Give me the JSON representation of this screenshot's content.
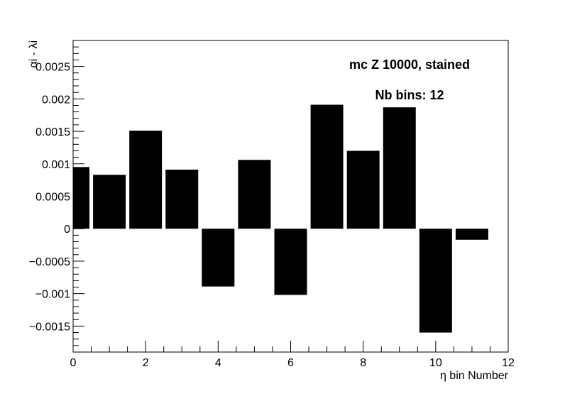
{
  "chart_data": {
    "type": "bar",
    "xlabel": "η bin Number",
    "ylabel": "αi - λi",
    "xlim": [
      0,
      12
    ],
    "ylim": [
      -0.0019,
      0.0029
    ],
    "x_ticks": [
      0,
      2,
      4,
      6,
      8,
      10,
      12
    ],
    "y_ticks": [
      -0.0015,
      -0.001,
      -0.0005,
      0,
      0.0005,
      0.001,
      0.0015,
      0.002,
      0.0025
    ],
    "y_tick_labels": [
      "−0.0015",
      "−0.001",
      "−0.0005",
      "0",
      "0.0005",
      "0.001",
      "0.0015",
      "0.002",
      "0.0025"
    ],
    "x_tick_labels": [
      "0",
      "2",
      "4",
      "6",
      "8",
      "10",
      "12"
    ],
    "bin_width": 0.9,
    "x": [
      0,
      1,
      2,
      3,
      4,
      5,
      6,
      7,
      8,
      9,
      10,
      11
    ],
    "values": [
      0.00095,
      0.00083,
      0.00151,
      0.00091,
      -0.00089,
      0.00106,
      -0.00102,
      0.00191,
      0.0012,
      0.00187,
      -0.0016,
      -0.00017
    ],
    "bar_color": "#000000",
    "grid": false,
    "annotations": [
      "mc Z 10000, stained",
      "Nb bins: 12"
    ]
  }
}
